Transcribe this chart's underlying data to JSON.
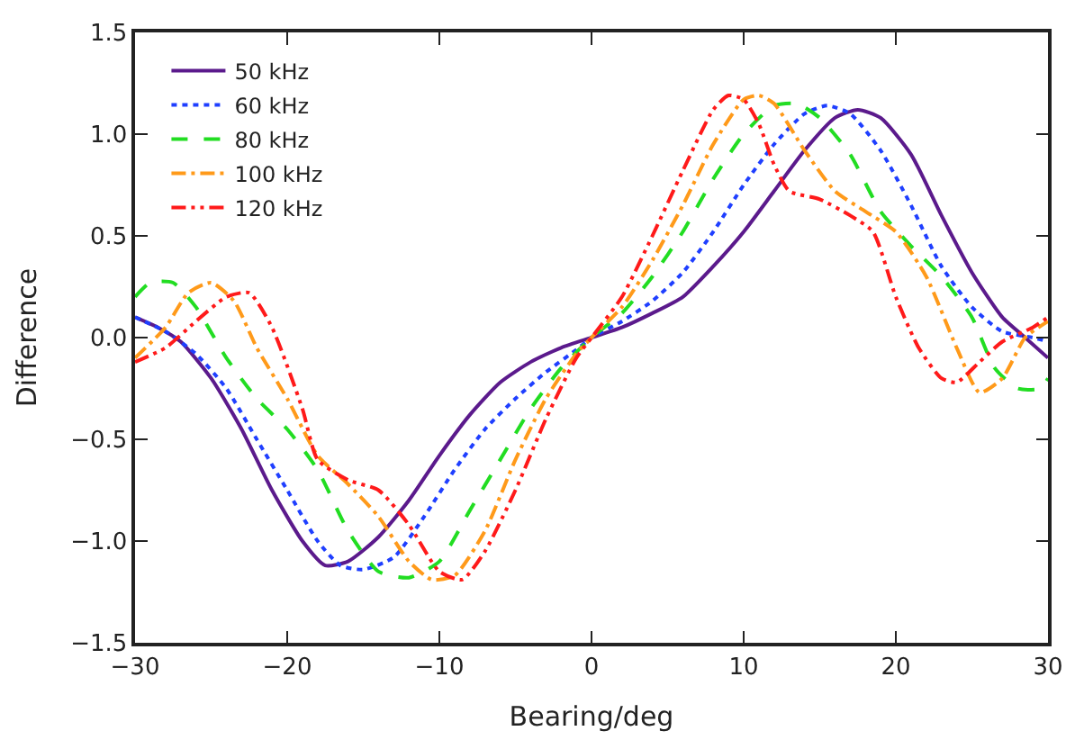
{
  "chart_data": {
    "type": "line",
    "xlabel": "Bearing/deg",
    "ylabel": "Difference",
    "xlim": [
      -30,
      30
    ],
    "xticks": [
      -30,
      -20,
      -10,
      0,
      10,
      20,
      30
    ],
    "ylim": [
      -1.5,
      1.5
    ],
    "yticks": [
      -1.5,
      {
        "value": -1,
        "label": "−1.0"
      },
      -0.5,
      {
        "value": 0,
        "label": "0.0"
      },
      0.5,
      {
        "value": 1,
        "label": "1.0"
      },
      1.5
    ],
    "legend": "top left",
    "marker": "none",
    "series": [
      {
        "name": "50 kHz",
        "color": "#5b1a8c",
        "line_style": "solid",
        "x": [
          -30,
          -28.5,
          -27,
          -25,
          -23,
          -21,
          -19,
          -17.5,
          -16,
          -14,
          -12,
          -10,
          -8,
          -6,
          -4,
          -2,
          0,
          2,
          4,
          6,
          8,
          10,
          12,
          14,
          16,
          17.5,
          19,
          21,
          23,
          25,
          27,
          28.5,
          30
        ],
        "values": [
          0.1,
          0.05,
          -0.02,
          -0.2,
          -0.45,
          -0.75,
          -1.0,
          -1.12,
          -1.1,
          -0.98,
          -0.8,
          -0.58,
          -0.38,
          -0.22,
          -0.12,
          -0.05,
          0,
          0.05,
          0.12,
          0.2,
          0.35,
          0.52,
          0.72,
          0.92,
          1.08,
          1.12,
          1.08,
          0.9,
          0.6,
          0.32,
          0.1,
          0.0,
          -0.1
        ]
      },
      {
        "name": "60 kHz",
        "color": "#1f3fff",
        "line_style": "dotted",
        "x": [
          -30,
          -28,
          -26,
          -24,
          -22,
          -20,
          -18,
          -16.5,
          -15,
          -13,
          -11,
          -9,
          -7,
          -5,
          -3,
          -1,
          0,
          2,
          4,
          6,
          8,
          10,
          12,
          14,
          15.5,
          17,
          19,
          21,
          23,
          25,
          27,
          29,
          30
        ],
        "values": [
          0.1,
          0.03,
          -0.08,
          -0.25,
          -0.5,
          -0.75,
          -1.0,
          -1.12,
          -1.14,
          -1.08,
          -0.88,
          -0.65,
          -0.45,
          -0.3,
          -0.17,
          -0.06,
          0,
          0.08,
          0.18,
          0.32,
          0.52,
          0.75,
          0.95,
          1.1,
          1.14,
          1.1,
          0.92,
          0.65,
          0.35,
          0.15,
          0.03,
          0.0,
          -0.02
        ]
      },
      {
        "name": "80 kHz",
        "color": "#22dd22",
        "line_style": "dashed",
        "x": [
          -30,
          -29,
          -27.5,
          -26,
          -24,
          -22,
          -20,
          -18,
          -16,
          -14,
          -12,
          -10,
          -8,
          -6,
          -4,
          -2,
          0,
          2,
          4,
          6,
          8,
          10,
          12,
          13.5,
          15,
          17,
          19,
          21,
          23,
          25,
          26.5,
          28,
          29.5,
          30
        ],
        "values": [
          0.2,
          0.27,
          0.27,
          0.15,
          -0.1,
          -0.3,
          -0.45,
          -0.65,
          -0.95,
          -1.15,
          -1.18,
          -1.1,
          -0.85,
          -0.6,
          -0.35,
          -0.15,
          0,
          0.12,
          0.3,
          0.52,
          0.78,
          1.0,
          1.14,
          1.15,
          1.08,
          0.9,
          0.62,
          0.45,
          0.3,
          0.1,
          -0.15,
          -0.25,
          -0.25,
          -0.2
        ]
      },
      {
        "name": "100 kHz",
        "color": "#ff9a1a",
        "line_style": "dashdot",
        "x": [
          -30,
          -28,
          -26.5,
          -25,
          -23.5,
          -22,
          -20,
          -18,
          -16,
          -14,
          -12,
          -10.5,
          -9,
          -7,
          -5,
          -3,
          -1,
          0,
          2,
          4,
          6,
          8,
          10,
          11,
          12,
          14,
          16,
          18,
          20,
          22,
          24,
          25.5,
          27,
          28.5,
          30
        ],
        "values": [
          -0.1,
          0.05,
          0.22,
          0.27,
          0.18,
          -0.05,
          -0.3,
          -0.58,
          -0.72,
          -0.88,
          -1.1,
          -1.19,
          -1.17,
          -0.95,
          -0.6,
          -0.3,
          -0.08,
          0,
          0.15,
          0.38,
          0.65,
          0.95,
          1.17,
          1.19,
          1.15,
          0.92,
          0.72,
          0.62,
          0.52,
          0.3,
          -0.05,
          -0.27,
          -0.2,
          0.0,
          0.08
        ]
      },
      {
        "name": "120 kHz",
        "color": "#ff1a1a",
        "line_style": "dashdotdot",
        "x": [
          -30,
          -28,
          -26,
          -24,
          -22.5,
          -21,
          -19,
          -18,
          -16,
          -14,
          -12,
          -10,
          -8.5,
          -7,
          -5,
          -3,
          -1,
          0,
          2,
          4,
          6,
          8,
          9,
          10,
          11,
          12,
          13,
          15,
          17,
          18.5,
          20,
          21.5,
          23,
          24,
          25.5,
          27,
          29,
          30
        ],
        "values": [
          -0.12,
          -0.05,
          0.08,
          0.2,
          0.22,
          0.05,
          -0.35,
          -0.6,
          -0.7,
          -0.75,
          -0.92,
          -1.15,
          -1.19,
          -1.05,
          -0.75,
          -0.4,
          -0.1,
          0,
          0.2,
          0.5,
          0.82,
          1.12,
          1.19,
          1.17,
          1.05,
          0.85,
          0.72,
          0.68,
          0.6,
          0.52,
          0.2,
          -0.05,
          -0.2,
          -0.22,
          -0.12,
          -0.02,
          0.05,
          0.1
        ]
      }
    ]
  }
}
